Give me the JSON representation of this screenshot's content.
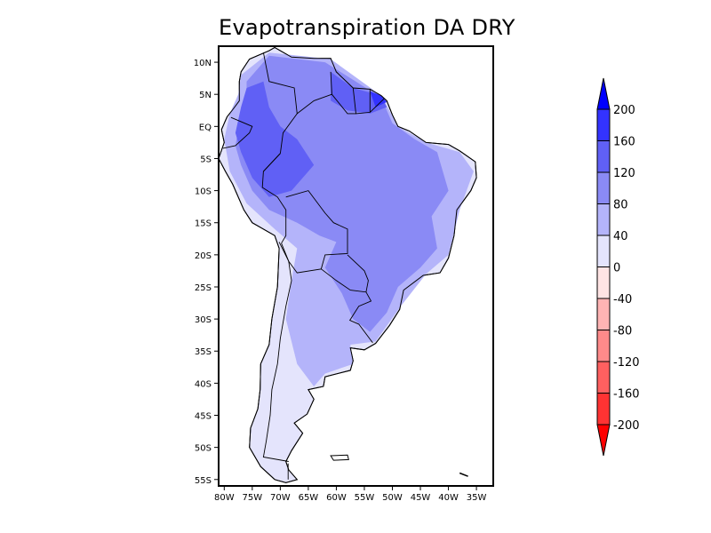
{
  "title": "Evapotranspiration DA DRY",
  "map": {
    "region": "South America",
    "lat_labels": [
      "10N",
      "5N",
      "EQ",
      "5S",
      "10S",
      "15S",
      "20S",
      "25S",
      "30S",
      "35S",
      "40S",
      "45S",
      "50S",
      "55S"
    ],
    "lat_values": [
      10,
      5,
      0,
      -5,
      -10,
      -15,
      -20,
      -25,
      -30,
      -35,
      -40,
      -45,
      -50,
      -55
    ],
    "lon_labels": [
      "80W",
      "75W",
      "70W",
      "65W",
      "60W",
      "55W",
      "50W",
      "45W",
      "40W",
      "35W"
    ],
    "lon_values": [
      -80,
      -75,
      -70,
      -65,
      -60,
      -55,
      -50,
      -45,
      -40,
      -35
    ],
    "lat_range": [
      -56,
      12.5
    ],
    "lon_range": [
      -81,
      -32
    ]
  },
  "colorbar": {
    "levels": [
      200,
      160,
      120,
      80,
      40,
      0,
      -40,
      -80,
      -120,
      -160,
      -200
    ],
    "labels": [
      "200",
      "160",
      "120",
      "80",
      "40",
      "0",
      "-40",
      "-80",
      "-120",
      "-160",
      "-200"
    ],
    "colors": [
      "#0000ff",
      "#3333ff",
      "#6060f5",
      "#8a8af5",
      "#b4b4fa",
      "#e4e4fc",
      "#ffe4e4",
      "#ffb4b4",
      "#ff8a8a",
      "#ff6060",
      "#ff3333",
      "#ff0000"
    ]
  }
}
